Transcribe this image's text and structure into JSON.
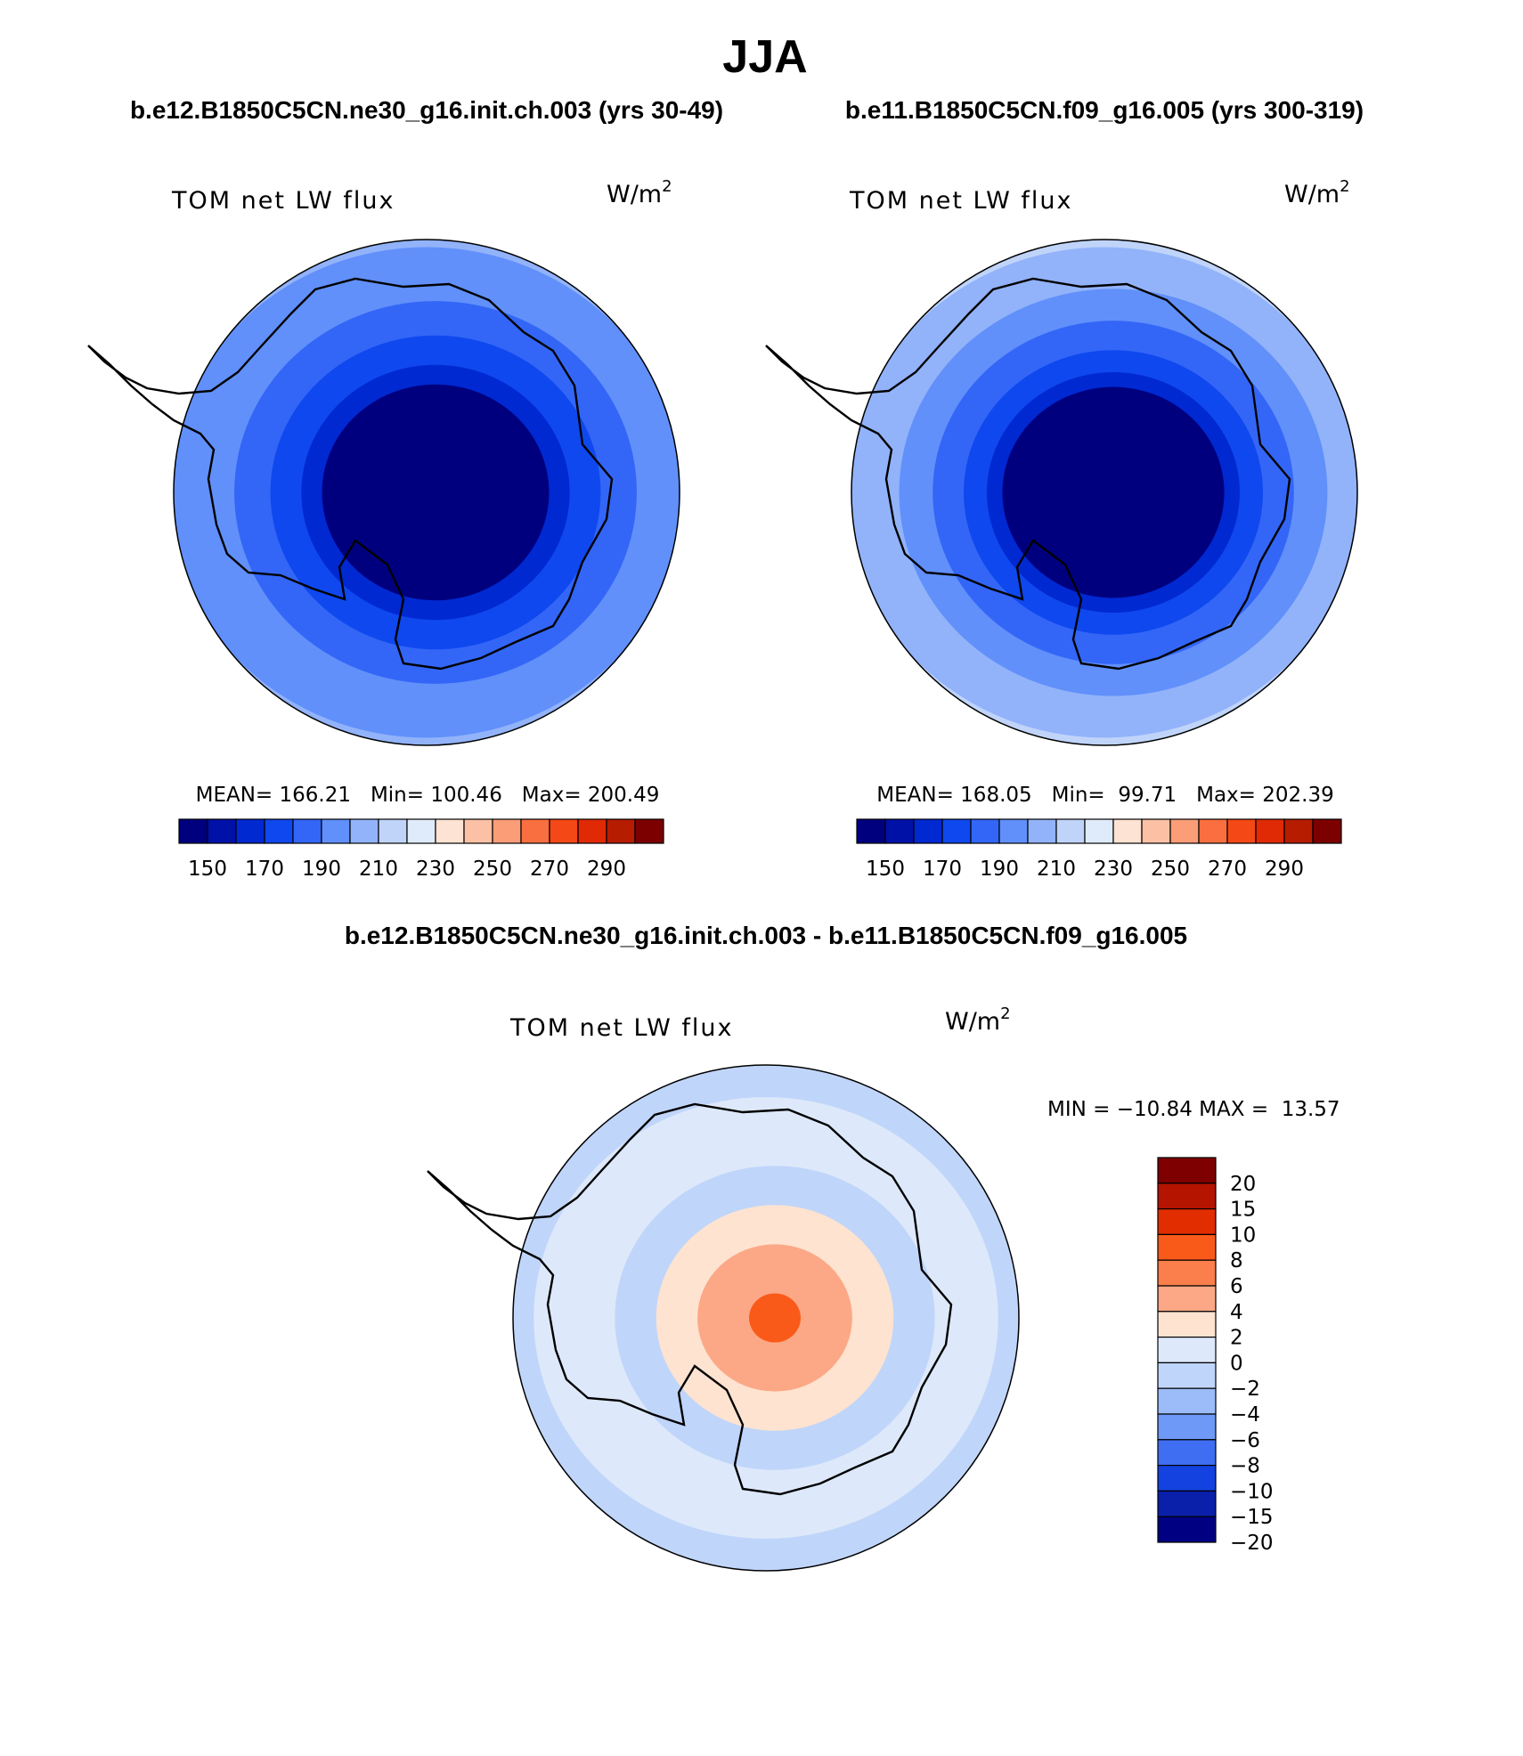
{
  "figure": {
    "title": "JJA",
    "diff_title": "b.e12.B1850C5CN.ne30_g16.init.ch.003 - b.e11.B1850C5CN.f09_g16.005"
  },
  "chart_data": [
    {
      "type": "heatmap",
      "title": "b.e12.B1850C5CN.ne30_g16.init.ch.003 (yrs 30-49)",
      "variable": "TOM net LW flux",
      "units_base": "W/m",
      "units_exp": "2",
      "stats": {
        "mean_label": "MEAN=",
        "mean": "166.21",
        "min_label": "Min=",
        "min": "100.46",
        "max_label": "Max=",
        "max": "200.49"
      },
      "colorbar": {
        "ticks": [
          "150",
          "170",
          "190",
          "210",
          "230",
          "250",
          "270",
          "290"
        ],
        "colors": [
          "#00007f",
          "#0011a8",
          "#0029d2",
          "#0f48ee",
          "#3366f7",
          "#6190fa",
          "#92b3fa",
          "#c0d4fa",
          "#dfebfa",
          "#fde3d3",
          "#fcc1a5",
          "#fb9d77",
          "#fa6f3f",
          "#f44816",
          "#e02a05",
          "#b61c00",
          "#7c0000"
        ]
      },
      "field_bands": [
        {
          "level": 1,
          "color": "#6190fa"
        },
        {
          "level": 2,
          "color": "#3366f7"
        },
        {
          "level": 3,
          "color": "#0f48ee"
        },
        {
          "level": 4,
          "color": "#0029d2"
        },
        {
          "level": 5,
          "color": "#00007f"
        }
      ]
    },
    {
      "type": "heatmap",
      "title": "b.e11.B1850C5CN.f09_g16.005 (yrs 300-319)",
      "variable": "TOM net LW flux",
      "units_base": "W/m",
      "units_exp": "2",
      "stats": {
        "mean_label": "MEAN=",
        "mean": "168.05",
        "min_label": "Min=",
        "min": "99.71",
        "max_label": "Max=",
        "max": "202.39"
      },
      "colorbar": {
        "ticks": [
          "150",
          "170",
          "190",
          "210",
          "230",
          "250",
          "270",
          "290"
        ],
        "colors": [
          "#00007f",
          "#0011a8",
          "#0029d2",
          "#0f48ee",
          "#3366f7",
          "#6190fa",
          "#92b3fa",
          "#c0d4fa",
          "#dfebfa",
          "#fde3d3",
          "#fcc1a5",
          "#fb9d77",
          "#fa6f3f",
          "#f44816",
          "#e02a05",
          "#b61c00",
          "#7c0000"
        ]
      },
      "field_bands": [
        {
          "level": 1,
          "color": "#92b3fa"
        },
        {
          "level": 2,
          "color": "#6190fa"
        },
        {
          "level": 3,
          "color": "#3366f7"
        },
        {
          "level": 4,
          "color": "#0f48ee"
        },
        {
          "level": 5,
          "color": "#0029d2"
        },
        {
          "level": 6,
          "color": "#00007f"
        }
      ]
    },
    {
      "type": "heatmap",
      "title": "b.e12.B1850C5CN.ne30_g16.init.ch.003 - b.e11.B1850C5CN.f09_g16.005",
      "variable": "TOM net LW flux",
      "units_base": "W/m",
      "units_exp": "2",
      "stats": {
        "min_label": "MIN =",
        "min": "−10.84",
        "max_label": "MAX =",
        "max": "13.57"
      },
      "colorbar": {
        "ticks": [
          "20",
          "15",
          "10",
          "8",
          "6",
          "4",
          "2",
          "0",
          "−2",
          "−4",
          "−6",
          "−8",
          "−10",
          "−15",
          "−20"
        ],
        "colors": [
          "#7f0000",
          "#b41400",
          "#e12d00",
          "#fa5a19",
          "#fa7f4c",
          "#fca886",
          "#fde3d0",
          "#dde9fa",
          "#c0d5fa",
          "#9cbcf9",
          "#6f99f6",
          "#3f6ef2",
          "#1442e0",
          "#0a1faa",
          "#000083"
        ]
      },
      "field_bands": [
        {
          "level": 1,
          "color": "#dde9fa"
        },
        {
          "level": 2,
          "color": "#c0d5fa"
        },
        {
          "level": 3,
          "color": "#fde3d0"
        },
        {
          "level": 4,
          "color": "#fca886"
        },
        {
          "level": 5,
          "color": "#fa5a19"
        }
      ]
    }
  ]
}
